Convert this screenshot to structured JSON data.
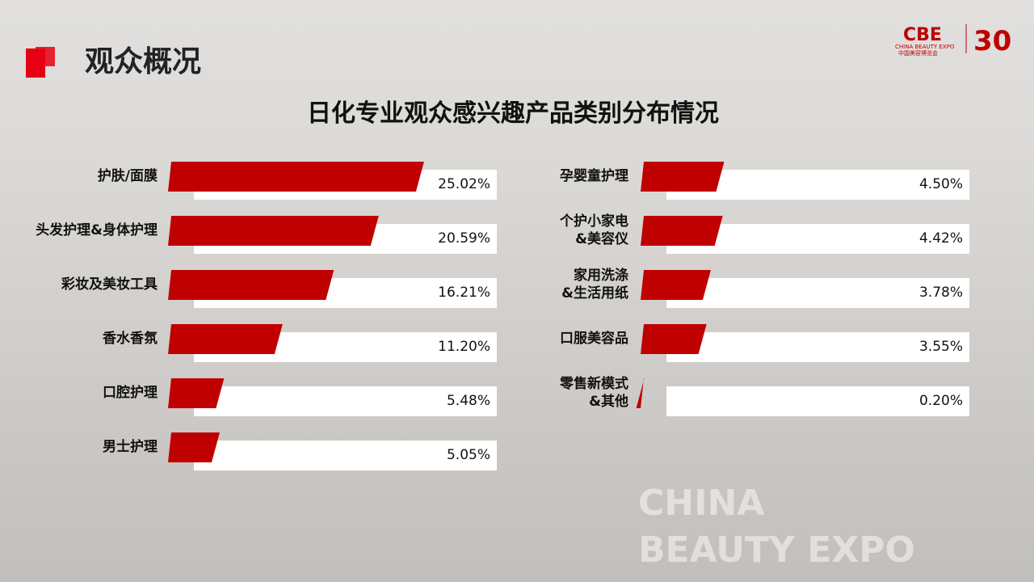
{
  "header": {
    "title": "观众概况",
    "logo": "CBE",
    "logo_sub_en": "CHINA BEAUTY EXPO",
    "logo_sub_cn": "中国美容博览会",
    "anniversary": "30"
  },
  "title": "日化专业观众感兴趣产品类别分布情况",
  "watermark": {
    "line1": "CHINA",
    "line2": "BEAUTY EXPO"
  },
  "chart_data": [
    {
      "type": "bar",
      "orientation": "horizontal",
      "color": "#c00000",
      "categories": [
        "护肤/面膜",
        "头发护理&身体护理",
        "彩妆及美妆工具",
        "香水香氛",
        "口腔护理",
        "男士护理"
      ],
      "values": [
        25.02,
        20.59,
        16.21,
        11.2,
        5.48,
        5.05
      ],
      "value_labels": [
        "25.02%",
        "20.59%",
        "16.21%",
        "11.20%",
        "5.48%",
        "5.05%"
      ],
      "xlim": [
        0,
        30
      ]
    },
    {
      "type": "bar",
      "orientation": "horizontal",
      "color": "#c00000",
      "categories": [
        "孕婴童护理",
        "个护小家电\n&美容仪",
        "家用洗涤\n&生活用纸",
        "口服美容品",
        "零售新模式\n&其他"
      ],
      "values": [
        4.5,
        4.42,
        3.78,
        3.55,
        0.2
      ],
      "value_labels": [
        "4.50%",
        "4.42%",
        "3.78%",
        "3.55%",
        "0.20%"
      ],
      "xlim": [
        0,
        15
      ]
    }
  ]
}
